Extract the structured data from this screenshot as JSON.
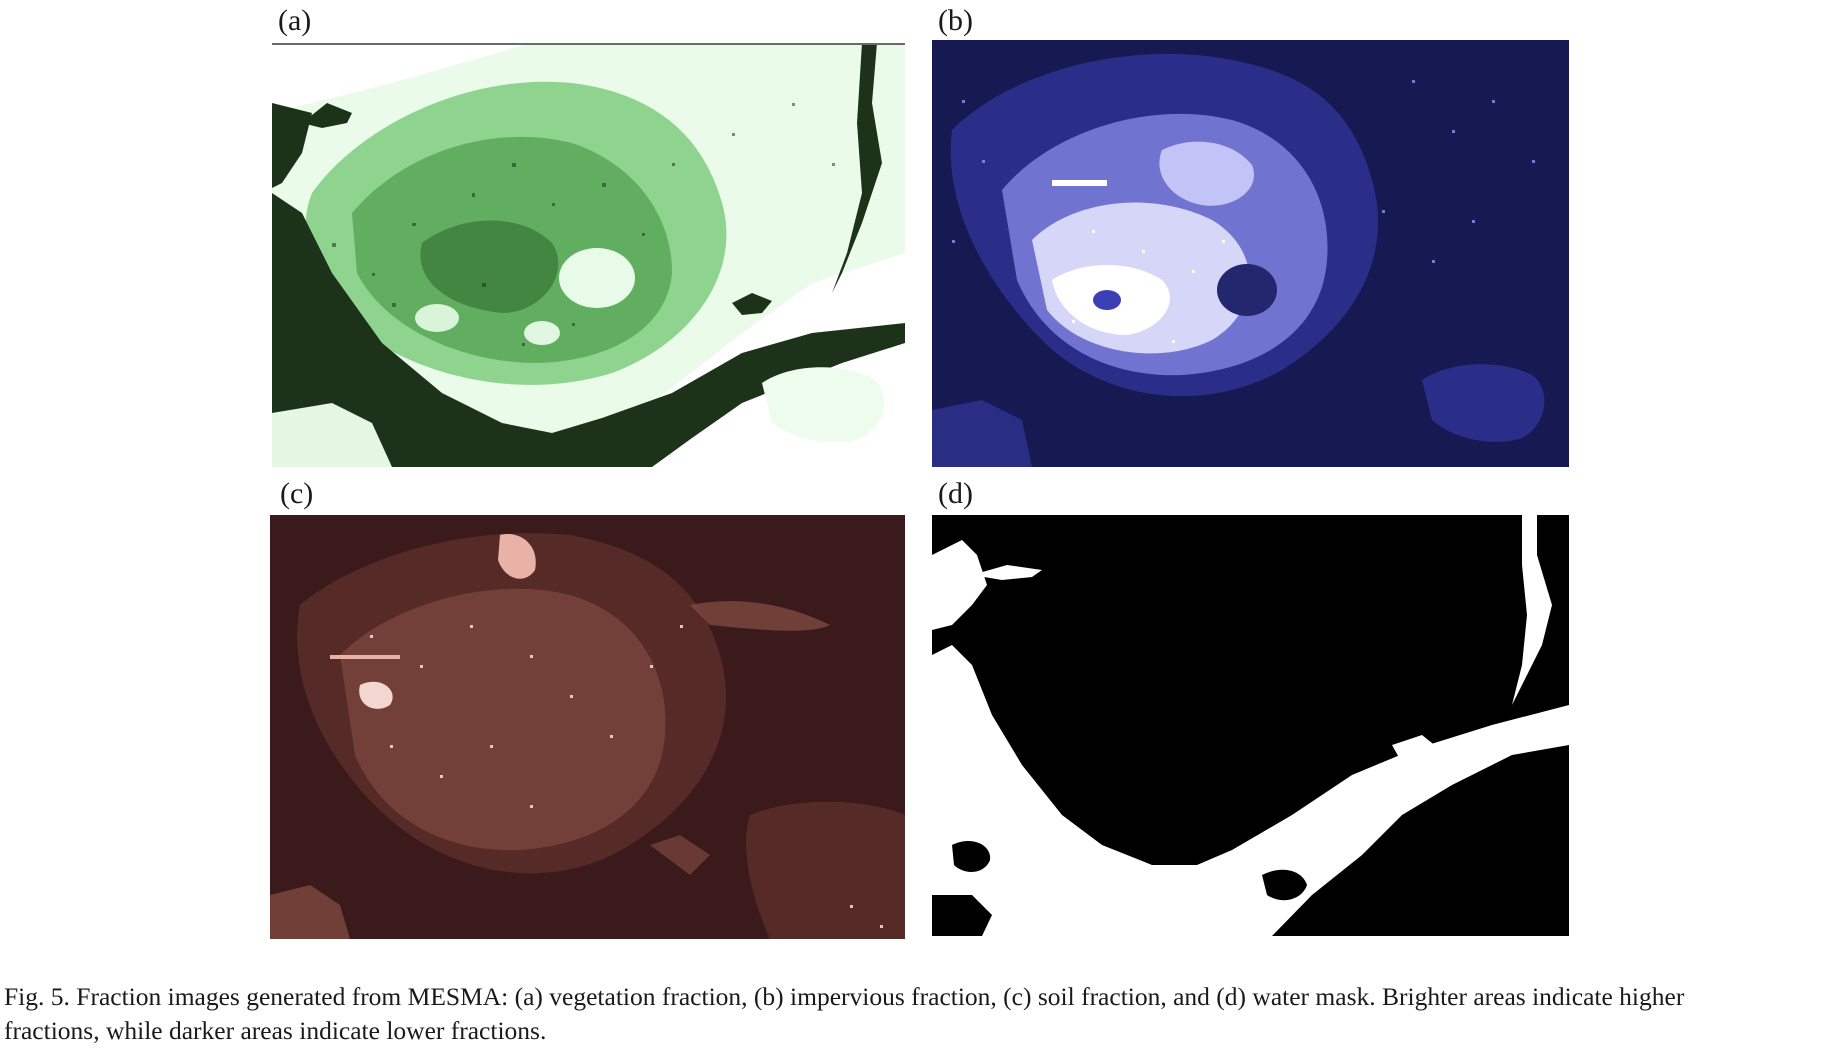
{
  "figure": {
    "panels": [
      {
        "id": "a",
        "label": "(a)",
        "colors": {
          "background": "#1c3319",
          "high": "#ffffff",
          "mid": "#7fd37f",
          "low": "#2e6e2e"
        }
      },
      {
        "id": "b",
        "label": "(b)",
        "colors": {
          "background": "#171a52",
          "high": "#ffffff",
          "mid": "#8f92f0",
          "low": "#3c40b5"
        }
      },
      {
        "id": "c",
        "label": "(c)",
        "colors": {
          "background": "#3a1a1a",
          "high": "#ffffff",
          "mid": "#e9b2a6",
          "low": "#7e4840"
        }
      },
      {
        "id": "d",
        "label": "(d)",
        "colors": {
          "background": "#000000",
          "high": "#ffffff"
        }
      }
    ],
    "caption": {
      "line1": "Fig. 5. Fraction images generated from MESMA: (a) vegetation fraction, (b) impervious fraction, (c) soil fraction, and (d) water mask. Brighter areas indicate higher",
      "line2": "fractions, while darker areas indicate lower fractions."
    }
  }
}
